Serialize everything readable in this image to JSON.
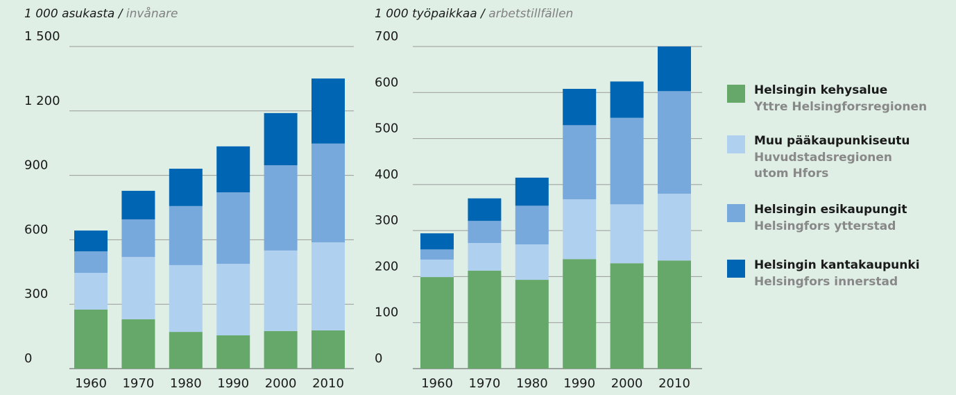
{
  "legend": [
    {
      "name": "Helsingin kehysalue",
      "sub": [
        "Yttre Helsingforsregionen"
      ],
      "color": "#66a86a"
    },
    {
      "name": "Muu pääkaupunkiseutu",
      "sub": [
        "Huvudstadsregionen",
        "utom Hfors"
      ],
      "color": "#b0d0ef"
    },
    {
      "name": "Helsingin esikaupungit",
      "sub": [
        "Helsingfors ytterstad"
      ],
      "color": "#78a9dc"
    },
    {
      "name": "Helsingin kantakaupunki",
      "sub": [
        "Helsingfors innerstad"
      ],
      "color": "#0066b3"
    }
  ],
  "chart_data": [
    {
      "type": "stacked_bar",
      "title": "1 000 asukasta /",
      "subtitle": "invånare",
      "categories": [
        "1960",
        "1970",
        "1980",
        "1990",
        "2000",
        "2010"
      ],
      "series": [
        {
          "values": [
            275,
            230,
            171,
            155,
            175,
            178
          ]
        },
        {
          "values": [
            171,
            290,
            311,
            333,
            375,
            410
          ]
        },
        {
          "values": [
            100,
            175,
            275,
            333,
            397,
            460
          ]
        },
        {
          "values": [
            97,
            133,
            174,
            214,
            243,
            303
          ]
        }
      ],
      "ylim": [
        0,
        1500
      ],
      "yticks": [
        0,
        300,
        600,
        900,
        {
          "value": 1200,
          "label": "1 200"
        },
        {
          "value": 1500,
          "label": "1 500"
        }
      ],
      "grid": true
    },
    {
      "type": "stacked_bar",
      "title": "1 000 työpaikkaa /",
      "subtitle": "arbetstillfällen",
      "categories": [
        "1960",
        "1970",
        "1980",
        "1990",
        "2000",
        "2010"
      ],
      "series": [
        {
          "values": [
            199,
            213,
            193,
            238,
            229,
            235
          ]
        },
        {
          "values": [
            38,
            60,
            77,
            130,
            128,
            145
          ]
        },
        {
          "values": [
            22,
            48,
            84,
            161,
            188,
            223
          ]
        },
        {
          "values": [
            35,
            49,
            61,
            79,
            79,
            97
          ]
        }
      ],
      "ylim": [
        0,
        700
      ],
      "yticks": [
        0,
        100,
        200,
        300,
        400,
        500,
        600,
        700
      ],
      "grid": true
    }
  ]
}
